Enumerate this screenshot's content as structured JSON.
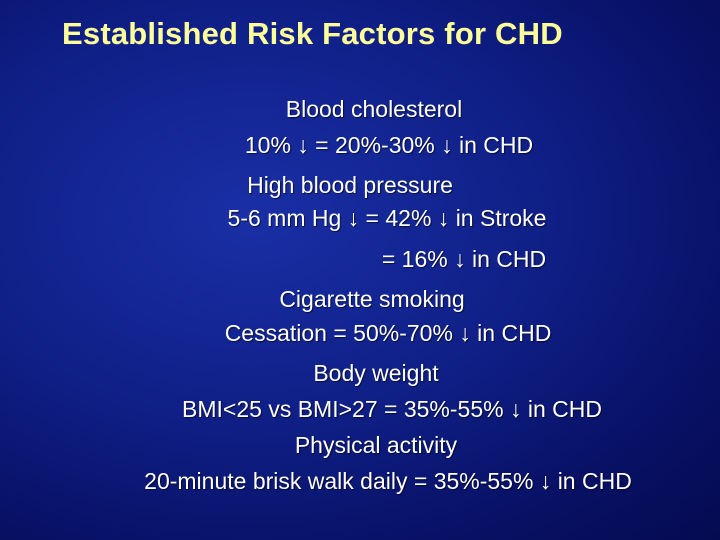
{
  "title": "Established Risk Factors for CHD",
  "lines": [
    "Blood cholesterol",
    "10% ↓ = 20%-30% ↓ in CHD",
    "High blood pressure",
    "5-6 mm Hg ↓  = 42% ↓ in Stroke",
    "= 16% ↓ in CHD",
    "Cigarette smoking",
    "Cessation = 50%-70% ↓ in CHD",
    "Body weight",
    "BMI<25 vs BMI>27 = 35%-55% ↓ in CHD",
    "Physical activity",
    "20-minute brisk walk daily = 35%-55% ↓ in CHD"
  ],
  "colors": {
    "background": "#0f1f86",
    "title": "#ffff99",
    "text": "#ffffff"
  }
}
